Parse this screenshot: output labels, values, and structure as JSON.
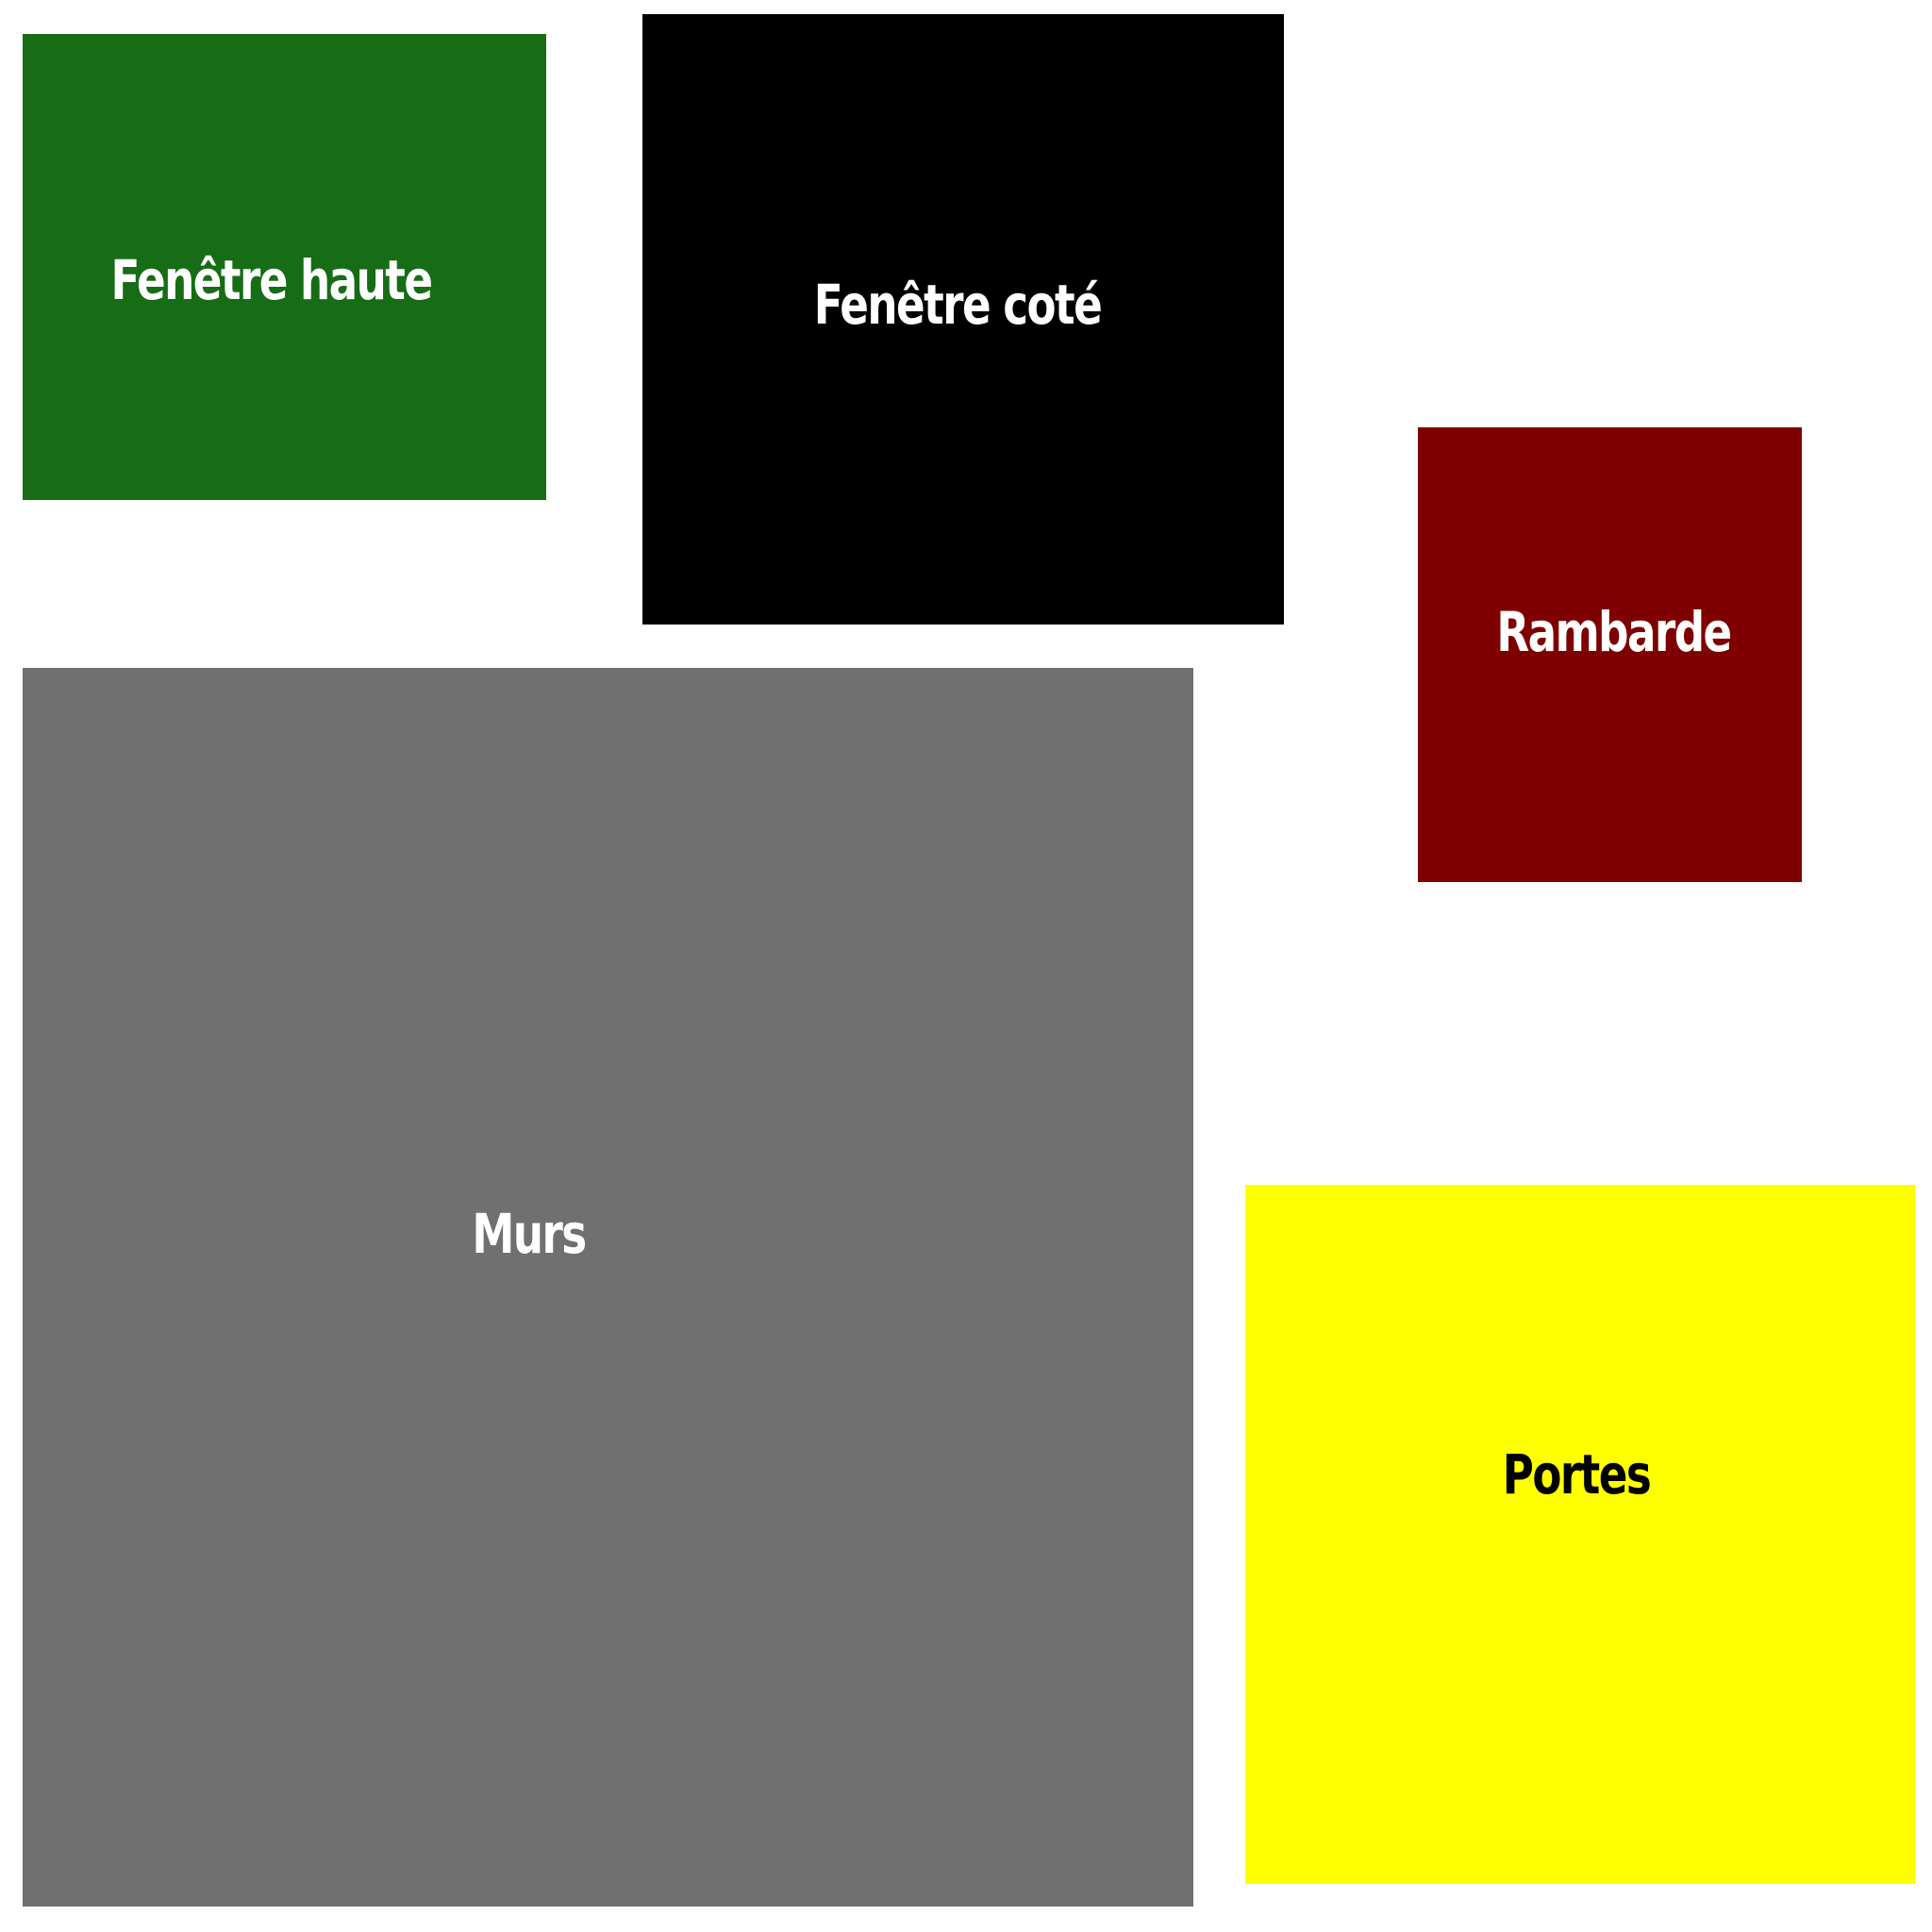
{
  "legend": {
    "items": [
      {
        "id": "fenetre-haute",
        "label": "Fenêtre haute",
        "color": "#166D16",
        "text_color": "#FFFFFF"
      },
      {
        "id": "fenetre-cote",
        "label": "Fenêtre coté",
        "color": "#000000",
        "text_color": "#FFFFFF"
      },
      {
        "id": "rambarde",
        "label": "Rambarde",
        "color": "#7F0000",
        "text_color": "#FFFFFF"
      },
      {
        "id": "murs",
        "label": "Murs",
        "color": "#707070",
        "text_color": "#FFFFFF"
      },
      {
        "id": "portes",
        "label": "Portes",
        "color": "#FFFF00",
        "text_color": "#000000"
      }
    ]
  }
}
